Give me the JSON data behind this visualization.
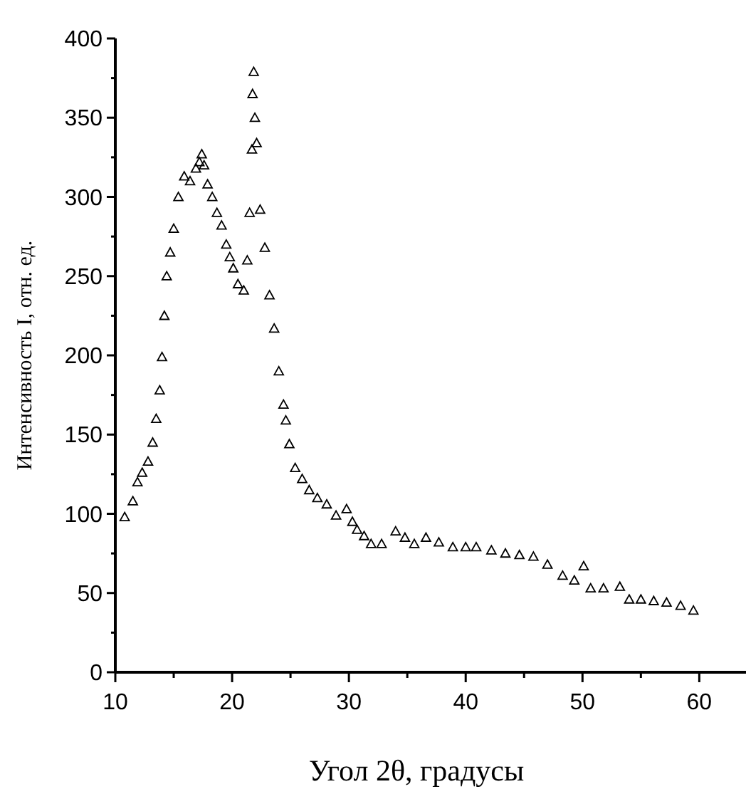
{
  "chart_data": {
    "type": "scatter",
    "xlabel": "Угол 2θ, градусы",
    "ylabel": "Интенсивность I, отн. ед.",
    "marker": "triangle",
    "grid": false,
    "xlim": [
      10,
      64
    ],
    "ylim": [
      0,
      400
    ],
    "xticks": [
      10,
      {
        "value": 15,
        "label": null
      },
      20,
      {
        "value": 25,
        "label": null
      },
      30,
      {
        "value": 35,
        "label": null
      },
      40,
      {
        "value": 45,
        "label": null
      },
      50,
      {
        "value": 55,
        "label": null
      },
      60
    ],
    "yticks": [
      0,
      {
        "value": 25,
        "label": null
      },
      50,
      {
        "value": 75,
        "label": null
      },
      100,
      {
        "value": 125,
        "label": null
      },
      150,
      {
        "value": 175,
        "label": null
      },
      200,
      {
        "value": 225,
        "label": null
      },
      250,
      {
        "value": 275,
        "label": null
      },
      300,
      {
        "value": 325,
        "label": null
      },
      350,
      {
        "value": 375,
        "label": null
      },
      400
    ],
    "x": [
      10.8,
      11.5,
      11.9,
      12.3,
      12.8,
      13.2,
      13.5,
      13.8,
      14.0,
      14.2,
      14.4,
      14.7,
      15.0,
      15.4,
      15.9,
      16.4,
      16.9,
      17.2,
      17.4,
      17.6,
      17.9,
      18.3,
      18.7,
      19.1,
      19.5,
      19.8,
      20.1,
      20.5,
      21.0,
      21.3,
      21.5,
      21.7,
      21.75,
      21.85,
      21.95,
      22.1,
      22.4,
      22.8,
      23.2,
      23.6,
      24.0,
      24.4,
      24.6,
      24.9,
      25.4,
      26.0,
      26.6,
      27.3,
      28.1,
      28.9,
      29.8,
      30.3,
      30.7,
      31.3,
      31.9,
      32.8,
      34.0,
      34.8,
      35.6,
      36.6,
      37.7,
      38.9,
      40.0,
      40.9,
      42.2,
      43.4,
      44.6,
      45.8,
      47.0,
      48.3,
      49.3,
      50.1,
      50.7,
      51.8,
      53.2,
      54.0,
      55.0,
      56.1,
      57.2,
      58.4,
      59.5
    ],
    "values": [
      98,
      108,
      120,
      126,
      133,
      145,
      160,
      178,
      199,
      225,
      250,
      265,
      280,
      300,
      313,
      310,
      318,
      322,
      327,
      320,
      308,
      300,
      290,
      282,
      270,
      262,
      255,
      245,
      241,
      260,
      290,
      330,
      365,
      379,
      350,
      334,
      292,
      268,
      238,
      217,
      190,
      169,
      159,
      144,
      129,
      122,
      115,
      110,
      106,
      99,
      103,
      95,
      90,
      86,
      81,
      81,
      89,
      85,
      81,
      85,
      82,
      79,
      79,
      79,
      77,
      75,
      74,
      73,
      68,
      61,
      58,
      67,
      53,
      53,
      54,
      46,
      46,
      45,
      44,
      42,
      39
    ]
  }
}
